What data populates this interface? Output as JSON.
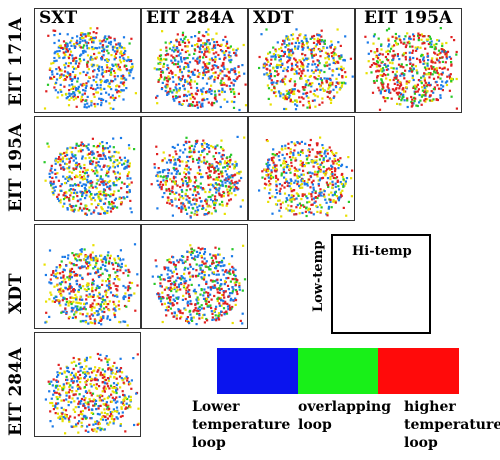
{
  "columns": [
    "SXT",
    "EIT 284A",
    "XDT",
    "EIT 195A"
  ],
  "rows": [
    "EIT 171A",
    "EIT 195A",
    "XDT",
    "EIT 284A"
  ],
  "diagram_box": {
    "top_label": "Hi-temp",
    "side_label": "Low-temp"
  },
  "legend": [
    {
      "color": "#0a14ee",
      "label": "Lower\ntemperature\nloop"
    },
    {
      "color": "#18f018",
      "label": "overlapping\nloop"
    },
    {
      "color": "#ff0a0a",
      "label": "higher\ntemperature\nloop"
    }
  ],
  "dot_colors": {
    "blue": "#1a7ae8",
    "yellow": "#e8e000",
    "red": "#e02020",
    "green": "#28c828"
  }
}
